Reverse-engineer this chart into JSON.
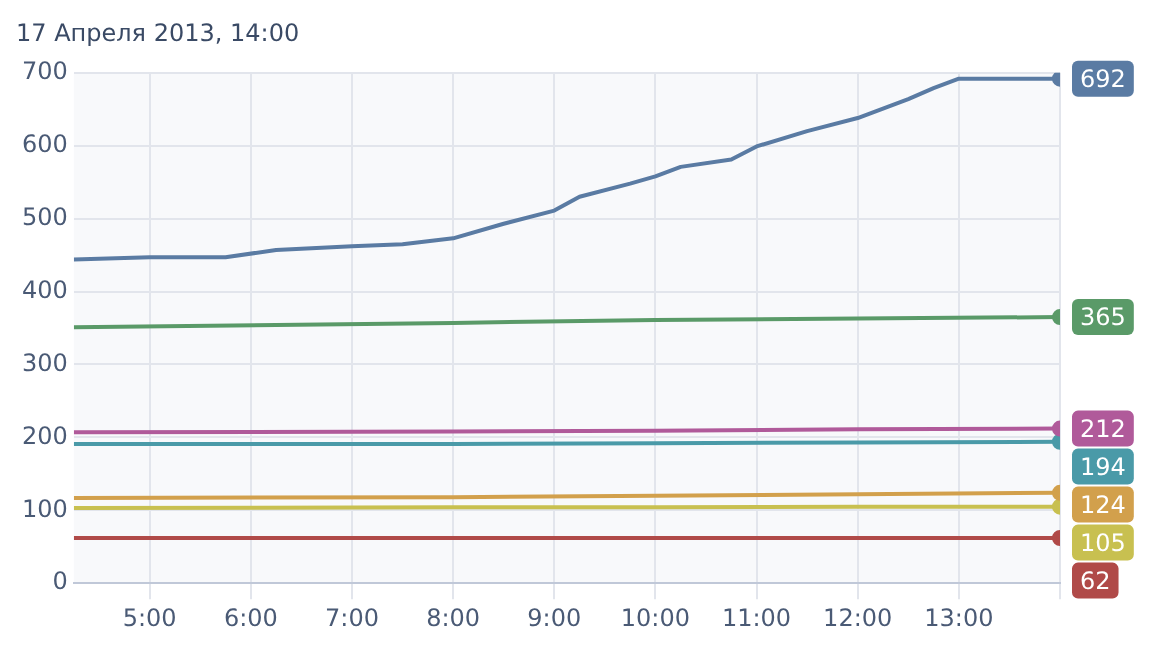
{
  "chart_data": {
    "type": "line",
    "title": "17 Апреля 2013, 14:00",
    "xlim": [
      4.25,
      14
    ],
    "xticks": [
      {
        "value": 5,
        "label": "5:00"
      },
      {
        "value": 6,
        "label": "6:00"
      },
      {
        "value": 7,
        "label": "7:00"
      },
      {
        "value": 8,
        "label": "8:00"
      },
      {
        "value": 9,
        "label": "9:00"
      },
      {
        "value": 10,
        "label": "10:00"
      },
      {
        "value": 11,
        "label": "11:00"
      },
      {
        "value": 12,
        "label": "12:00"
      },
      {
        "value": 13,
        "label": "13:00"
      },
      {
        "value": 14,
        "label": null
      }
    ],
    "ylim": [
      0,
      700
    ],
    "yticks": [
      0,
      100,
      200,
      300,
      400,
      500,
      600,
      700
    ],
    "grid": true,
    "legend": false,
    "line_style": "solid",
    "series": [
      {
        "color": "#5a7ba3",
        "x": [
          4.25,
          5,
          5.75,
          6.25,
          7,
          7.5,
          8,
          8.5,
          9,
          9.25,
          9.75,
          10,
          10.25,
          10.75,
          11,
          11.5,
          12,
          12.5,
          12.75,
          13,
          14
        ],
        "values": [
          444,
          447,
          447,
          457,
          462,
          465,
          473,
          493,
          511,
          530,
          548,
          558,
          571,
          581,
          599,
          620,
          638,
          664,
          679,
          692,
          692
        ],
        "value_labels": [
          null,
          null,
          null,
          null,
          null,
          null,
          null,
          null,
          null,
          null,
          null,
          null,
          null,
          null,
          null,
          null,
          null,
          null,
          null,
          null,
          "692"
        ]
      },
      {
        "color": "#5a9a68",
        "x": [
          4.25,
          8,
          10,
          12,
          14
        ],
        "values": [
          351,
          357,
          361,
          363,
          365
        ],
        "value_labels": [
          null,
          null,
          null,
          null,
          "365"
        ]
      },
      {
        "color": "#b05a9a",
        "x": [
          4.25,
          8,
          10,
          12,
          14
        ],
        "values": [
          207,
          208,
          209,
          211,
          212
        ],
        "value_labels": [
          null,
          null,
          null,
          null,
          "212"
        ]
      },
      {
        "color": "#4a9aa8",
        "x": [
          4.25,
          8,
          10,
          12,
          14
        ],
        "values": [
          191,
          191,
          192,
          193,
          194
        ],
        "value_labels": [
          null,
          null,
          null,
          null,
          "194"
        ]
      },
      {
        "color": "#d2a04c",
        "x": [
          4.25,
          8,
          10,
          12,
          14
        ],
        "values": [
          117,
          118,
          120,
          122,
          124
        ],
        "value_labels": [
          null,
          null,
          null,
          null,
          "124"
        ]
      },
      {
        "color": "#c8c050",
        "x": [
          4.25,
          8,
          10,
          12,
          14
        ],
        "values": [
          103,
          104,
          104,
          105,
          105
        ],
        "value_labels": [
          null,
          null,
          null,
          null,
          "105"
        ]
      },
      {
        "color": "#b04a48",
        "x": [
          4.25,
          8,
          10,
          12,
          14
        ],
        "values": [
          62,
          62,
          62,
          62,
          62
        ],
        "value_labels": [
          null,
          null,
          null,
          null,
          "62"
        ]
      }
    ]
  }
}
